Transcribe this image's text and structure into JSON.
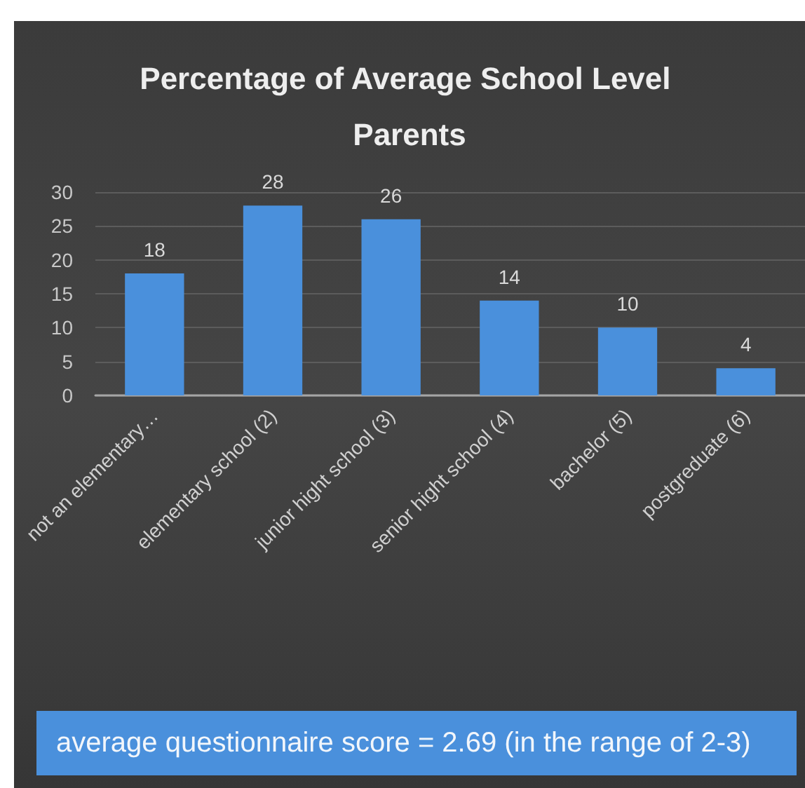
{
  "chart_data": {
    "type": "bar",
    "title": "Percentage of Average School Level Parents",
    "categories": [
      "not an elementary…",
      "elementary school (2)",
      "junior hight school (3)",
      "senior hight school (4)",
      "bachelor (5)",
      "postgreduate (6)"
    ],
    "values": [
      18,
      28,
      26,
      14,
      10,
      4
    ],
    "color": "#4a90dc",
    "ylim": [
      0,
      30
    ],
    "yticks": [
      0,
      5,
      10,
      15,
      20,
      25,
      30
    ],
    "grid": "y",
    "data_labels": true,
    "annotations": [
      "average questionnaire score = 2.69 (in the range of 2-3)"
    ]
  }
}
